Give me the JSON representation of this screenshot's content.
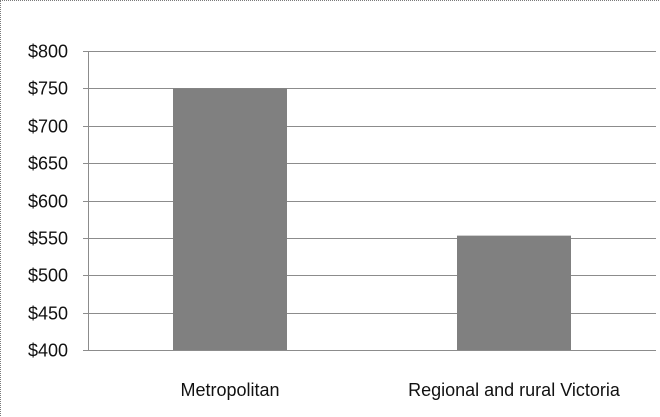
{
  "chart_data": {
    "type": "bar",
    "categories": [
      "Metropolitan",
      "Regional and rural Victoria"
    ],
    "values": [
      750,
      553
    ],
    "ylim": [
      400,
      800
    ],
    "yticks": [
      400,
      450,
      500,
      550,
      600,
      650,
      700,
      750,
      800
    ],
    "ytick_labels": [
      "$400",
      "$450",
      "$500",
      "$550",
      "$600",
      "$650",
      "$700",
      "$750",
      "$800"
    ],
    "grid": true,
    "legend": "none",
    "colors": {
      "bar": "#808080",
      "grid": "#8c8c8c",
      "axis": "#8c8c8c",
      "frame": "#7a7a7a"
    }
  }
}
